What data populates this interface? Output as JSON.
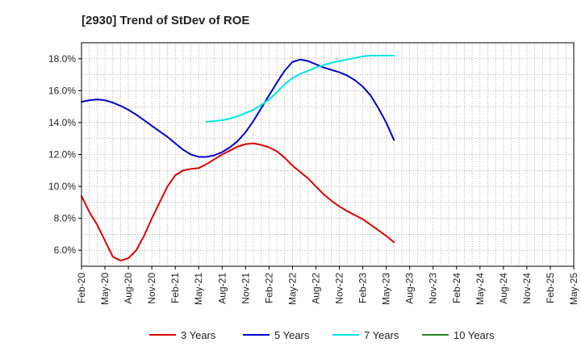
{
  "chart_data": {
    "type": "line",
    "title": "[2930]  Trend of StDev of ROE",
    "xlabel": "",
    "ylabel": "",
    "grid": true,
    "legend_position": "bottom",
    "ylim": [
      5.0,
      19.0
    ],
    "y_ticks": [
      6.0,
      8.0,
      10.0,
      12.0,
      14.0,
      16.0,
      18.0
    ],
    "y_tick_labels": [
      "6.0%",
      "8.0%",
      "10.0%",
      "12.0%",
      "14.0%",
      "16.0%",
      "18.0%"
    ],
    "x_tick_labels": [
      "Feb-20",
      "May-20",
      "Aug-20",
      "Nov-20",
      "Feb-21",
      "May-21",
      "Aug-21",
      "Nov-21",
      "Feb-22",
      "May-22",
      "Aug-22",
      "Nov-22",
      "Feb-23",
      "May-23",
      "Aug-23",
      "Nov-23",
      "Feb-24",
      "May-24",
      "Aug-24",
      "Nov-24",
      "Feb-25",
      "May-25"
    ],
    "series": [
      {
        "name": "3 Years",
        "color": "#dd0000",
        "start_index": 0,
        "values": [
          9.4,
          8.4,
          7.6,
          6.6,
          5.6,
          5.35,
          5.5,
          6.0,
          6.9,
          8.0,
          9.0,
          10.0,
          10.7,
          11.0,
          11.1,
          11.15,
          11.4,
          11.7,
          12.0,
          12.25,
          12.5,
          12.65,
          12.7,
          12.6,
          12.45,
          12.2,
          11.8,
          11.3,
          10.9,
          10.5,
          10.0,
          9.5,
          9.1,
          8.75,
          8.45,
          8.2,
          7.95,
          7.6,
          7.25,
          6.9,
          6.5
        ]
      },
      {
        "name": "5 Years",
        "color": "#0000cc",
        "start_index": 0,
        "values": [
          15.3,
          15.4,
          15.45,
          15.4,
          15.25,
          15.05,
          14.8,
          14.5,
          14.15,
          13.8,
          13.45,
          13.1,
          12.7,
          12.3,
          12.0,
          11.85,
          11.85,
          11.95,
          12.15,
          12.45,
          12.85,
          13.4,
          14.1,
          14.9,
          15.7,
          16.5,
          17.25,
          17.8,
          17.95,
          17.85,
          17.65,
          17.45,
          17.3,
          17.15,
          16.95,
          16.65,
          16.25,
          15.7,
          14.9,
          14.0,
          12.9
        ]
      },
      {
        "name": "7 Years",
        "color": "#00e5e5",
        "start_index": 16,
        "values": [
          14.05,
          14.1,
          14.15,
          14.25,
          14.4,
          14.6,
          14.8,
          15.1,
          15.45,
          15.9,
          16.4,
          16.8,
          17.05,
          17.25,
          17.45,
          17.6,
          17.75,
          17.85,
          17.95,
          18.05,
          18.15,
          18.2,
          18.2,
          18.2,
          18.2
        ]
      },
      {
        "name": "10 Years",
        "color": "#228822",
        "start_index": 0,
        "values": []
      }
    ]
  }
}
